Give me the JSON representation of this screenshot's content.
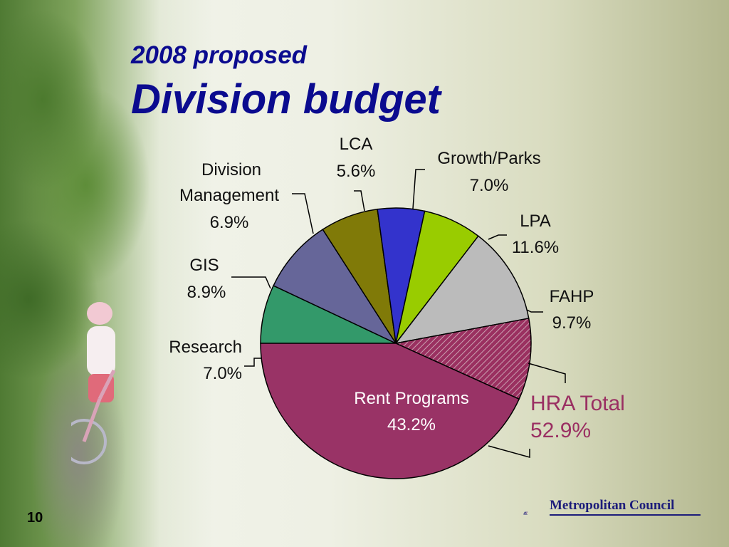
{
  "slide": {
    "title_line1": "2008 proposed",
    "title_line2": "Division budget",
    "page_number": "10",
    "logo_text": "Metropolitan Council"
  },
  "colors": {
    "title": "#0b0b8f",
    "hra_label": "#9a2f62"
  },
  "chart_data": {
    "type": "pie",
    "title": "",
    "start_angle_deg": 180,
    "slices": [
      {
        "label": "Research",
        "value": 7.0,
        "display": "7.0%",
        "color": "#33996a"
      },
      {
        "label": "GIS",
        "value": 8.9,
        "display": "8.9%",
        "color": "#666699"
      },
      {
        "label": "Division Management",
        "label_lines": [
          "Division",
          "Management"
        ],
        "value": 6.9,
        "display": "6.9%",
        "color": "#807a08"
      },
      {
        "label": "LCA",
        "value": 5.6,
        "display": "5.6%",
        "color": "#3333cc"
      },
      {
        "label": "Growth/Parks",
        "value": 7.0,
        "display": "7.0%",
        "color": "#99cc00"
      },
      {
        "label": "LPA",
        "value": 11.6,
        "display": "11.6%",
        "color": "#bbbbbb"
      },
      {
        "label": "FAHP",
        "value": 9.7,
        "display": "9.7%",
        "color": "#9a3060",
        "pattern": "hatch"
      },
      {
        "label": "Rent Programs",
        "value": 43.2,
        "display": "43.2%",
        "color": "#993366"
      }
    ],
    "group_annotation": {
      "label": "HRA Total",
      "value": 52.9,
      "display": "52.9%"
    }
  }
}
